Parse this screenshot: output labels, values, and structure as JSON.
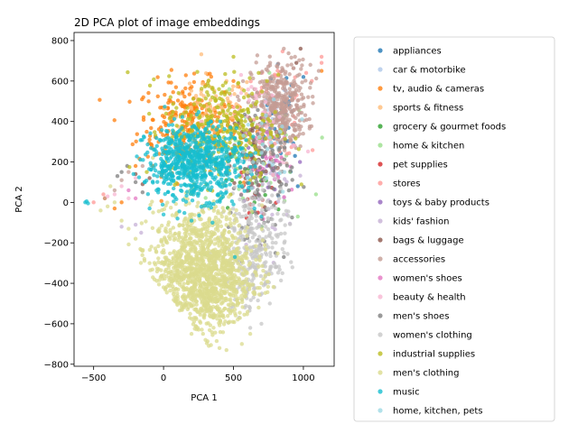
{
  "chart_data": {
    "type": "scatter",
    "title": "2D PCA plot of image embeddings",
    "xlabel": "PCA 1",
    "ylabel": "PCA 2",
    "xlim": [
      -640,
      1220
    ],
    "ylim": [
      -810,
      840
    ],
    "xticks": [
      -500,
      0,
      500,
      1000
    ],
    "yticks": [
      -800,
      -600,
      -400,
      -200,
      0,
      200,
      400,
      600,
      800
    ],
    "grid": false,
    "legend_position": "outside-right",
    "series": [
      {
        "name": "appliances",
        "color": "#1f77b4",
        "cluster": {
          "cx": 840,
          "cy": 400,
          "sx": 60,
          "sy": 140,
          "n": 40
        },
        "points": [
          [
            940,
            230
          ],
          [
            960,
            80
          ],
          [
            1000,
            620
          ],
          [
            900,
            500
          ],
          [
            870,
            300
          ],
          [
            920,
            450
          ]
        ]
      },
      {
        "name": "car & motorbike",
        "color": "#aec7e8",
        "cluster": {
          "cx": 760,
          "cy": 380,
          "sx": 70,
          "sy": 120,
          "n": 25
        },
        "points": [
          [
            820,
            270
          ],
          [
            700,
            350
          ]
        ]
      },
      {
        "name": "tv, audio & cameras",
        "color": "#ff7f0e",
        "cluster": {
          "cx": 170,
          "cy": 380,
          "sx": 180,
          "sy": 110,
          "n": 260
        },
        "points": [
          [
            -350,
            -30
          ],
          [
            -300,
            0
          ],
          [
            -200,
            180
          ],
          [
            -100,
            310
          ],
          [
            50,
            500
          ],
          [
            300,
            580
          ],
          [
            500,
            600
          ],
          [
            1130,
            650
          ],
          [
            -420,
            20
          ]
        ]
      },
      {
        "name": "sports & fitness",
        "color": "#ffbb78",
        "cluster": {
          "cx": 340,
          "cy": 470,
          "sx": 160,
          "sy": 80,
          "n": 70
        },
        "points": [
          [
            560,
            560
          ],
          [
            450,
            600
          ],
          [
            240,
            490
          ]
        ]
      },
      {
        "name": "grocery & gourmet foods",
        "color": "#2ca02c",
        "cluster": {
          "cx": 600,
          "cy": 150,
          "sx": 150,
          "sy": 120,
          "n": 30
        },
        "points": [
          [
            650,
            0
          ],
          [
            700,
            -120
          ]
        ]
      },
      {
        "name": "home & kitchen",
        "color": "#98df8a",
        "cluster": {
          "cx": 700,
          "cy": 200,
          "sx": 180,
          "sy": 180,
          "n": 35
        },
        "points": [
          [
            1090,
            40
          ],
          [
            960,
            -70
          ],
          [
            470,
            560
          ]
        ]
      },
      {
        "name": "pet supplies",
        "color": "#d62728",
        "cluster": {
          "cx": 680,
          "cy": 60,
          "sx": 80,
          "sy": 80,
          "n": 15
        },
        "points": [
          [
            620,
            -10
          ],
          [
            660,
            40
          ]
        ]
      },
      {
        "name": "stores",
        "color": "#ff9896",
        "cluster": {
          "cx": 780,
          "cy": 460,
          "sx": 120,
          "sy": 120,
          "n": 60
        },
        "points": [
          [
            1130,
            720
          ],
          [
            1130,
            690
          ],
          [
            1020,
            640
          ],
          [
            1060,
            600
          ],
          [
            -430,
            40
          ],
          [
            -500,
            0
          ]
        ]
      },
      {
        "name": "toys & baby products",
        "color": "#9467bd",
        "cluster": {
          "cx": 660,
          "cy": 120,
          "sx": 100,
          "sy": 100,
          "n": 15
        },
        "points": [
          [
            740,
            180
          ],
          [
            600,
            60
          ]
        ]
      },
      {
        "name": "kids' fashion",
        "color": "#c5b0d5",
        "cluster": {
          "cx": 720,
          "cy": 60,
          "sx": 110,
          "sy": 160,
          "n": 40
        },
        "points": [
          [
            -200,
            -110
          ],
          [
            -300,
            -120
          ],
          [
            -160,
            -150
          ]
        ]
      },
      {
        "name": "bags & luggage",
        "color": "#8c564b",
        "cluster": {
          "cx": 660,
          "cy": 230,
          "sx": 90,
          "sy": 140,
          "n": 50
        },
        "points": [
          [
            -200,
            140
          ],
          [
            -150,
            90
          ],
          [
            -100,
            120
          ],
          [
            980,
            760
          ],
          [
            950,
            690
          ]
        ]
      },
      {
        "name": "accessories",
        "color": "#c49c94",
        "cluster": {
          "cx": 830,
          "cy": 480,
          "sx": 100,
          "sy": 110,
          "n": 380
        },
        "points": [
          [
            860,
            760
          ],
          [
            940,
            720
          ],
          [
            1050,
            680
          ],
          [
            1110,
            650
          ],
          [
            760,
            600
          ],
          [
            740,
            320
          ],
          [
            650,
            560
          ],
          [
            -300,
            110
          ],
          [
            -250,
            150
          ],
          [
            -350,
            60
          ],
          [
            -150,
            180
          ],
          [
            -420,
            20
          ]
        ]
      },
      {
        "name": "women's shoes",
        "color": "#e377c2",
        "cluster": {
          "cx": 760,
          "cy": 180,
          "sx": 90,
          "sy": 100,
          "n": 30
        },
        "points": [
          [
            -250,
            60
          ],
          [
            -200,
            20
          ],
          [
            790,
            230
          ]
        ]
      },
      {
        "name": "beauty & health",
        "color": "#f7b6d2",
        "cluster": {
          "cx": 720,
          "cy": 380,
          "sx": 120,
          "sy": 120,
          "n": 40
        },
        "points": [
          [
            -350,
            40
          ],
          [
            -300,
            80
          ],
          [
            -200,
            120
          ],
          [
            -400,
            30
          ],
          [
            -250,
            20
          ]
        ]
      },
      {
        "name": "men's shoes",
        "color": "#7f7f7f",
        "cluster": {
          "cx": 700,
          "cy": 120,
          "sx": 110,
          "sy": 140,
          "n": 110
        },
        "points": [
          [
            -300,
            150
          ],
          [
            -200,
            100
          ],
          [
            -150,
            50
          ],
          [
            -260,
            180
          ],
          [
            -330,
            130
          ],
          [
            800,
            -250
          ],
          [
            860,
            -270
          ],
          [
            720,
            -100
          ]
        ]
      },
      {
        "name": "women's clothing",
        "color": "#c7c7c7",
        "cluster": {
          "cx": 640,
          "cy": -260,
          "sx": 120,
          "sy": 180,
          "n": 340
        },
        "points": [
          [
            760,
            -500
          ],
          [
            800,
            -320
          ],
          [
            850,
            -350
          ],
          [
            820,
            -160
          ],
          [
            700,
            -600
          ],
          [
            620,
            -620
          ],
          [
            860,
            -60
          ]
        ]
      },
      {
        "name": "industrial supplies",
        "color": "#bcbd22",
        "cluster": {
          "cx": 420,
          "cy": 370,
          "sx": 200,
          "sy": 130,
          "n": 320
        },
        "points": [
          [
            500,
            720
          ],
          [
            680,
            640
          ],
          [
            740,
            600
          ],
          [
            620,
            110
          ],
          [
            -120,
            150
          ],
          [
            50,
            520
          ],
          [
            350,
            560
          ]
        ]
      },
      {
        "name": "men's clothing",
        "color": "#dbdb8d",
        "cluster": {
          "cx": 280,
          "cy": -350,
          "sx": 180,
          "sy": 160,
          "n": 1500
        },
        "points": [
          [
            -450,
            -40
          ],
          [
            -400,
            -20
          ],
          [
            -380,
            80
          ],
          [
            -350,
            0
          ],
          [
            -300,
            -90
          ],
          [
            -250,
            -130
          ],
          [
            -200,
            -180
          ],
          [
            -150,
            -240
          ],
          [
            -100,
            -300
          ],
          [
            0,
            -420
          ],
          [
            200,
            -650
          ],
          [
            300,
            -680
          ],
          [
            400,
            -720
          ],
          [
            450,
            -730
          ],
          [
            560,
            -700
          ],
          [
            620,
            -650
          ],
          [
            680,
            -520
          ],
          [
            700,
            -400
          ],
          [
            600,
            150
          ]
        ]
      },
      {
        "name": "music",
        "color": "#17becf",
        "cluster": {
          "cx": 220,
          "cy": 200,
          "sx": 170,
          "sy": 90,
          "n": 700
        },
        "points": [
          [
            -560,
            0
          ],
          [
            -550,
            5
          ],
          [
            -540,
            -5
          ],
          [
            -100,
            -30
          ],
          [
            -50,
            60
          ],
          [
            0,
            -60
          ],
          [
            100,
            -80
          ],
          [
            200,
            -90
          ],
          [
            350,
            -100
          ],
          [
            500,
            -10
          ],
          [
            650,
            -30
          ],
          [
            700,
            -70
          ],
          [
            510,
            -270
          ],
          [
            300,
            350
          ],
          [
            400,
            320
          ],
          [
            560,
            80
          ]
        ]
      },
      {
        "name": "home, kitchen, pets",
        "color": "#9edae5",
        "cluster": {
          "cx": 700,
          "cy": 250,
          "sx": 120,
          "sy": 120,
          "n": 25
        },
        "points": [
          [
            760,
            320
          ],
          [
            640,
            200
          ]
        ]
      }
    ]
  }
}
